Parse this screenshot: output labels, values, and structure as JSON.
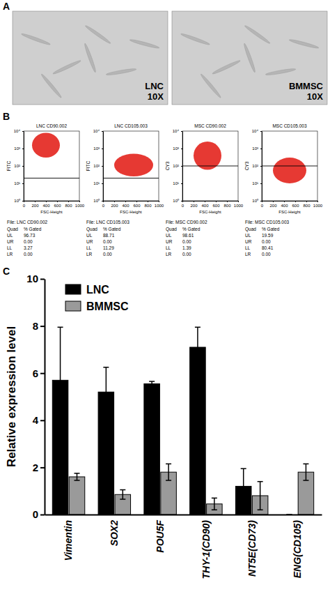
{
  "figure": {
    "panel_letters": [
      "A",
      "B",
      "C"
    ],
    "images": [
      {
        "label": "LNC",
        "magnification": "10X"
      },
      {
        "label": "BMMSC",
        "magnification": "10X"
      }
    ]
  },
  "chart_data": [
    {
      "type": "scatter",
      "title": "LNC CD90.002",
      "x_label": "FSC-Height",
      "y_label": "FITC",
      "xlim": [
        0,
        1000
      ],
      "xticks": [
        0,
        200,
        400,
        600,
        800,
        1000
      ],
      "ylim": [
        1,
        10000
      ],
      "yticks": [
        {
          "value": 1,
          "label": "10⁰"
        },
        {
          "value": 10,
          "label": "10¹"
        },
        {
          "value": 100,
          "label": "10²"
        },
        {
          "value": 1000,
          "label": "10³"
        },
        {
          "value": 10000,
          "label": "10⁴"
        }
      ],
      "log": "y",
      "quadrant_y": 20,
      "population": {
        "color": "#e3231d",
        "x_range": [
          150,
          650
        ],
        "y_range": [
          300,
          8000
        ]
      },
      "table": {
        "caption": "File: LNC CD90.002",
        "headers": [
          "Quad",
          "% Gated"
        ],
        "rows": [
          [
            "UL",
            "96.73"
          ],
          [
            "UR",
            "0.00"
          ],
          [
            "LL",
            "3.27"
          ],
          [
            "LR",
            "0.00"
          ]
        ]
      }
    },
    {
      "type": "scatter",
      "title": "LNC CD105.003",
      "x_label": "FSC-Height",
      "y_label": "FITC",
      "xlim": [
        0,
        1000
      ],
      "xticks": [
        0,
        200,
        400,
        600,
        800,
        1000
      ],
      "ylim": [
        1,
        10000
      ],
      "yticks": [
        {
          "value": 1,
          "label": "10⁰"
        },
        {
          "value": 10,
          "label": "10¹"
        },
        {
          "value": 100,
          "label": "10²"
        },
        {
          "value": 1000,
          "label": "10³"
        },
        {
          "value": 10000,
          "label": "10⁴"
        }
      ],
      "log": "y",
      "quadrant_y": 20,
      "population": {
        "color": "#e3231d",
        "x_range": [
          200,
          900
        ],
        "y_range": [
          25,
          500
        ]
      },
      "table": {
        "caption": "File: LNC CD105.003",
        "headers": [
          "Quad",
          "% Gated"
        ],
        "rows": [
          [
            "UL",
            "88.71"
          ],
          [
            "UR",
            "0.00"
          ],
          [
            "LL",
            "11.29"
          ],
          [
            "LR",
            "0.00"
          ]
        ]
      }
    },
    {
      "type": "scatter",
      "title": "MSC CD90.002",
      "x_label": "FSC-Height",
      "y_label": "CY3",
      "xlim": [
        0,
        1000
      ],
      "xticks": [
        0,
        200,
        400,
        600,
        800,
        1000
      ],
      "ylim": [
        1,
        10000
      ],
      "yticks": [
        {
          "value": 1,
          "label": "10⁰"
        },
        {
          "value": 10,
          "label": "10¹"
        },
        {
          "value": 100,
          "label": "10²"
        },
        {
          "value": 1000,
          "label": "10³"
        },
        {
          "value": 10000,
          "label": "10⁴"
        }
      ],
      "log": "y",
      "quadrant_y": 100,
      "population": {
        "color": "#e3231d",
        "x_range": [
          200,
          700
        ],
        "y_range": [
          60,
          2500
        ]
      },
      "table": {
        "caption": "File: MSC CD90.002",
        "headers": [
          "Quad",
          "% Gated"
        ],
        "rows": [
          [
            "UL",
            "98.61"
          ],
          [
            "UR",
            "0.00"
          ],
          [
            "LL",
            "1.39"
          ],
          [
            "LR",
            "0.00"
          ]
        ]
      }
    },
    {
      "type": "scatter",
      "title": "MSC CD105.003",
      "x_label": "FSC-Height",
      "y_label": "CY3",
      "xlim": [
        0,
        1000
      ],
      "xticks": [
        0,
        200,
        400,
        600,
        800,
        1000
      ],
      "ylim": [
        1,
        10000
      ],
      "yticks": [
        {
          "value": 1,
          "label": "10⁰"
        },
        {
          "value": 10,
          "label": "10¹"
        },
        {
          "value": 100,
          "label": "10²"
        },
        {
          "value": 1000,
          "label": "10³"
        },
        {
          "value": 10000,
          "label": "10⁴"
        }
      ],
      "log": "y",
      "quadrant_y": 100,
      "population": {
        "color": "#e3231d",
        "x_range": [
          200,
          800
        ],
        "y_range": [
          10,
          300
        ]
      },
      "table": {
        "caption": "File: MSC CD105.003",
        "headers": [
          "Quad",
          "% Gated"
        ],
        "rows": [
          [
            "UL",
            "19.59"
          ],
          [
            "UR",
            "0.00"
          ],
          [
            "LL",
            "80.41"
          ],
          [
            "LR",
            "0.00"
          ]
        ]
      }
    },
    {
      "type": "bar",
      "y_label": "Relative expression level",
      "categories": [
        "Vimentin",
        "SOX2",
        "POU5F",
        "THY-1(CD90)",
        "NT5E(CD73)",
        "ENG(CD105)"
      ],
      "series": [
        {
          "name": "LNC",
          "color": "#000000",
          "values": [
            5.7,
            5.2,
            5.55,
            7.1,
            1.2,
            0
          ],
          "errors": [
            2.25,
            1.05,
            0.1,
            0.85,
            0.75,
            0
          ]
        },
        {
          "name": "BMMSC",
          "color": "#9a9a9a",
          "values": [
            1.6,
            0.85,
            1.8,
            0.45,
            0.8,
            1.8
          ],
          "errors": [
            0.15,
            0.2,
            0.35,
            0.25,
            0.6,
            0.35
          ]
        }
      ],
      "ylim": [
        0,
        10
      ],
      "yticks": [
        0,
        2,
        4,
        6,
        8,
        10
      ],
      "legend": "top-left"
    }
  ]
}
